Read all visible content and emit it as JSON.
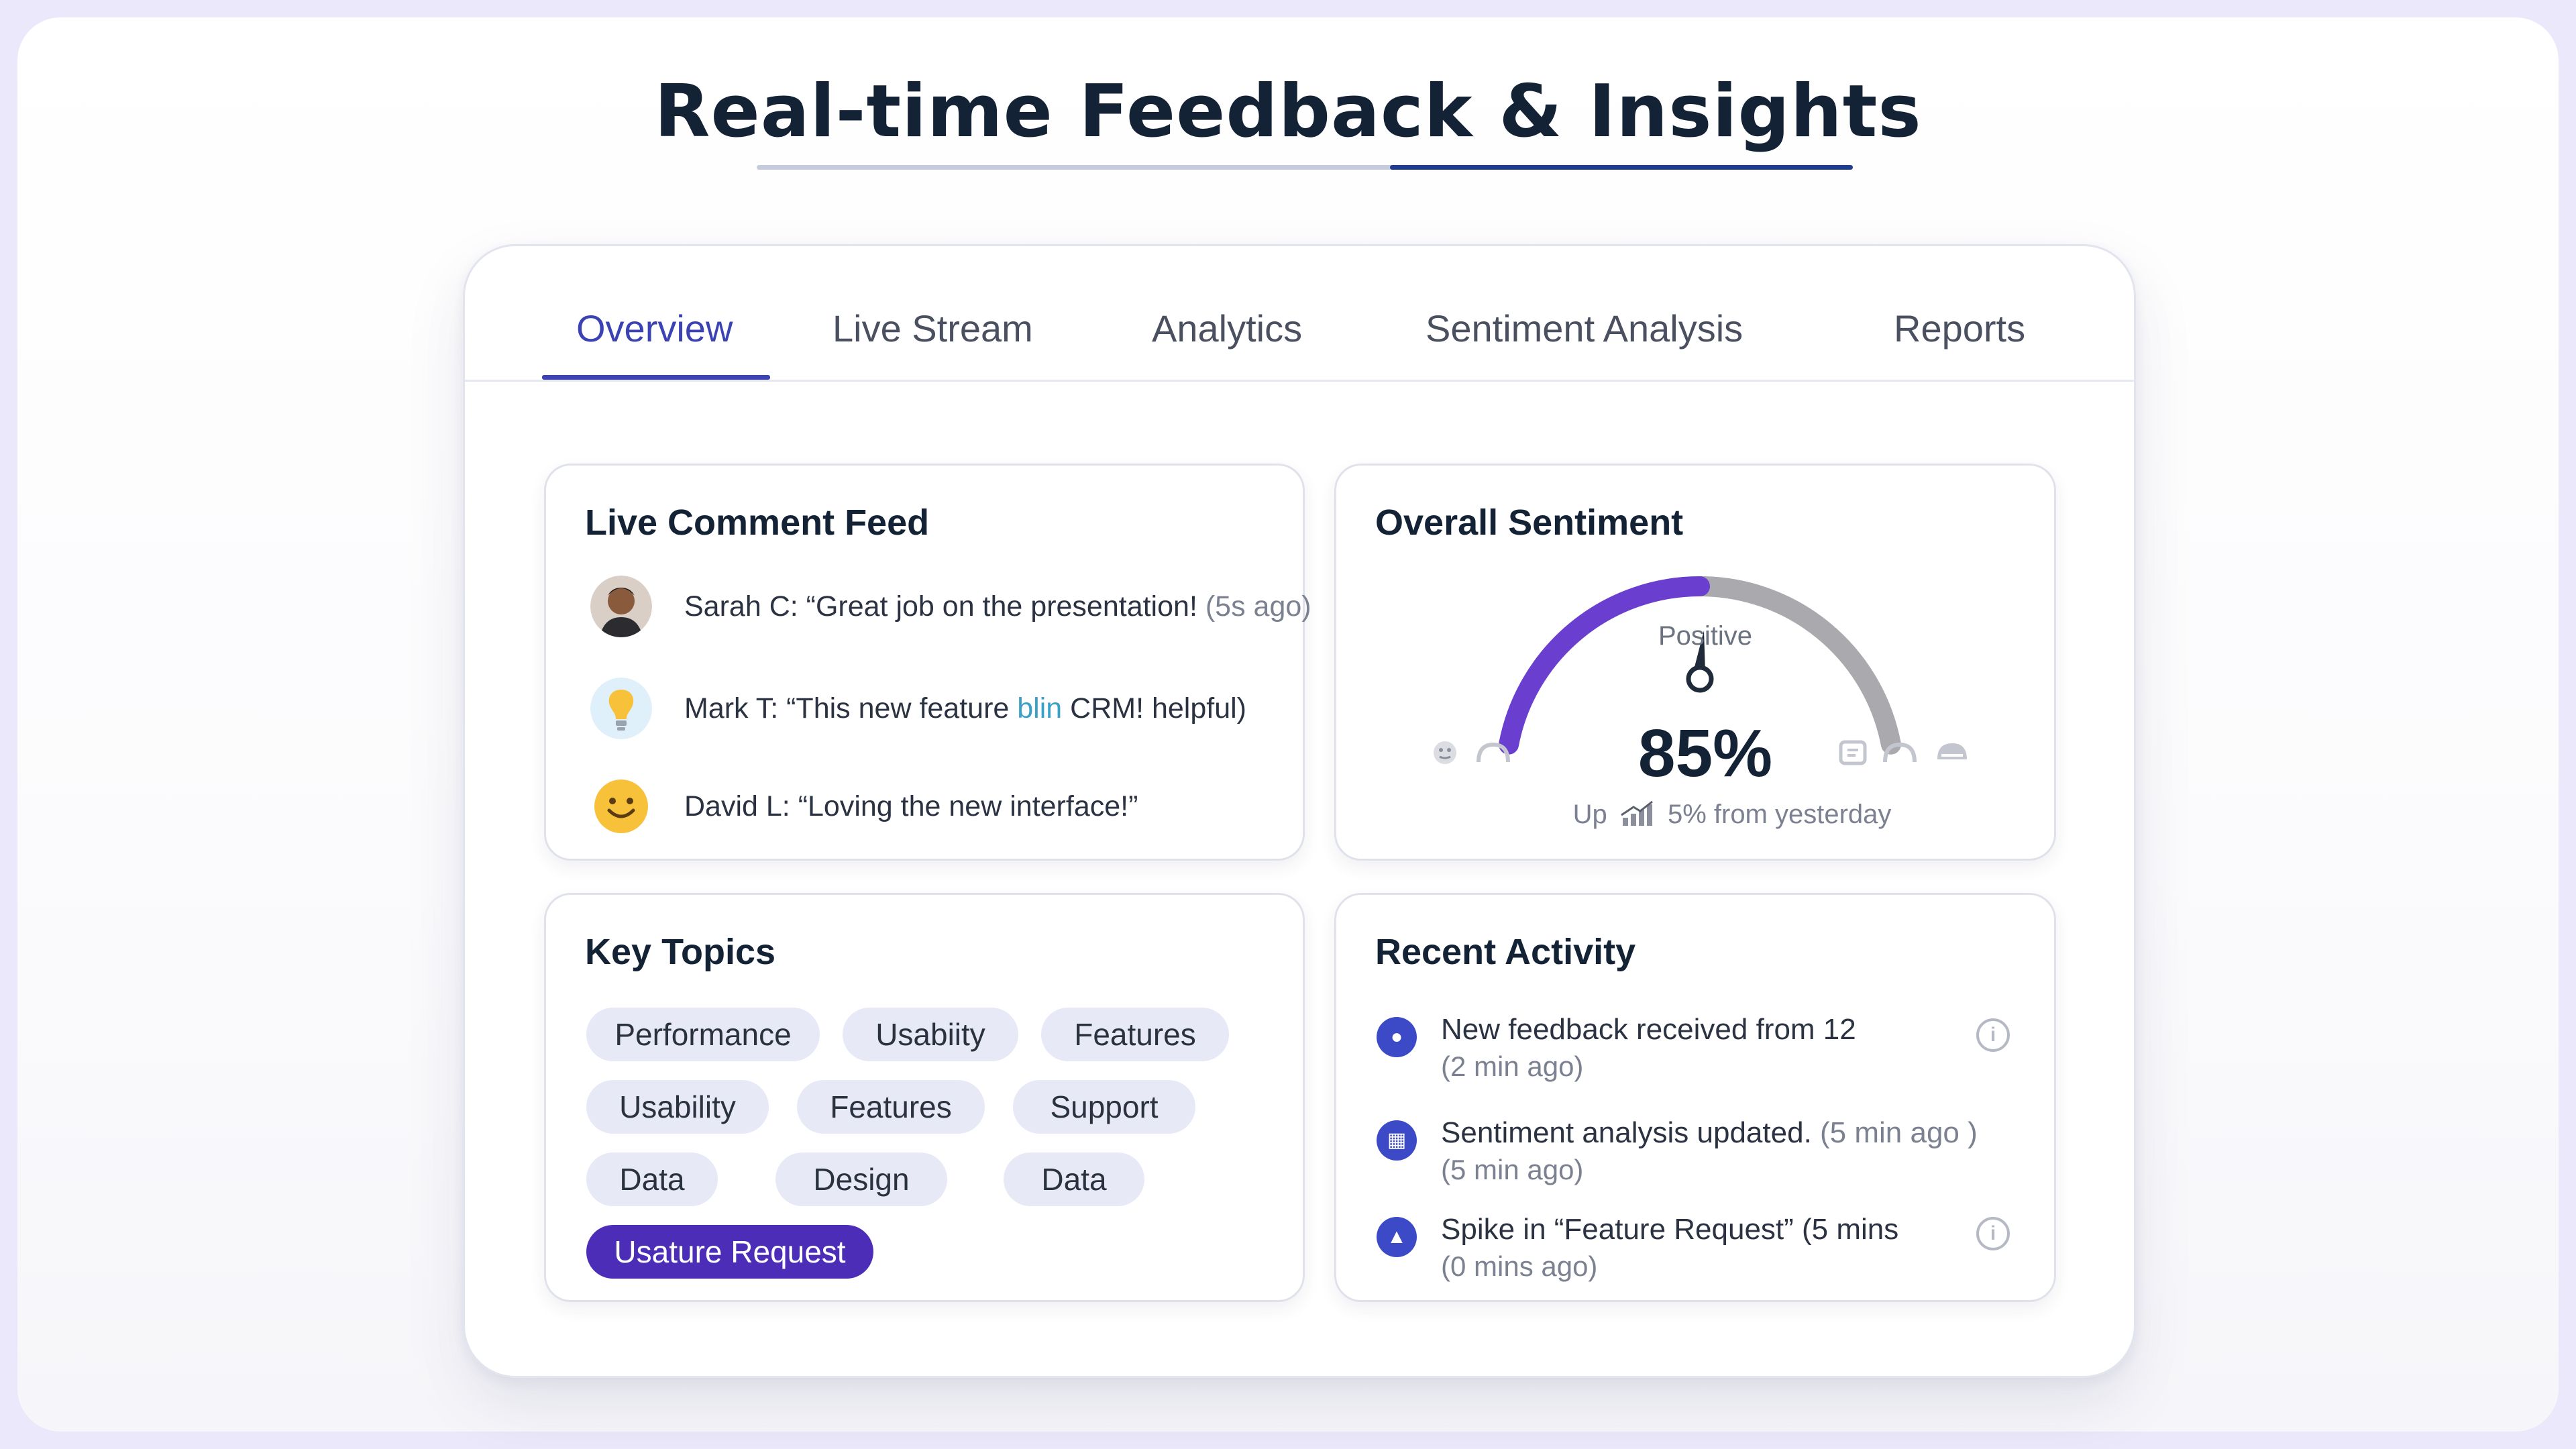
{
  "page": {
    "title": "Real-time Feedback & Insights"
  },
  "tabs": [
    {
      "label": "Overview",
      "active": true
    },
    {
      "label": "Live Stream"
    },
    {
      "label": "Analytics"
    },
    {
      "label": "Sentiment Analysis"
    },
    {
      "label": "Reports"
    }
  ],
  "comment_feed": {
    "title": "Live Comment Feed",
    "items": [
      {
        "text": "Sarah C: “Great job on the presentation!",
        "ago": "(5s ago)",
        "avatar": "person-avatar"
      },
      {
        "text": "Mark T: “This new feature ",
        "highlight": "blin",
        "rest": " CRM! helpful)",
        "avatar": "lightbulb-icon"
      },
      {
        "text": "David L: “Loving the new interface!”",
        "avatar": "smiley-icon"
      }
    ]
  },
  "sentiment": {
    "title": "Overall Sentiment",
    "label": "Positive",
    "value_text": "85%",
    "value": 85,
    "delta_prefix": "Up",
    "delta_text": "5% from yesterday",
    "colors": {
      "positive": "#6a3fd0",
      "rest": "#a9a9ae"
    }
  },
  "topics": {
    "title": "Key Topics",
    "chips": [
      {
        "label": "Performance"
      },
      {
        "label": "Usabiity"
      },
      {
        "label": "Features"
      },
      {
        "label": "Usability"
      },
      {
        "label": "Features"
      },
      {
        "label": "Support"
      },
      {
        "label": "Data"
      },
      {
        "label": "Design"
      },
      {
        "label": "Data"
      },
      {
        "label": "Usature Request",
        "active": true
      }
    ]
  },
  "activity": {
    "title": "Recent Activity",
    "items": [
      {
        "line1": "New feedback received from 12",
        "line2": "(2 min ago)",
        "icon": "feedback-icon"
      },
      {
        "line1": "Sentiment analysis  updated.",
        "line1_sub": " (5 min ago )",
        "line2": "(5 min ago)",
        "icon": "grid-icon"
      },
      {
        "line1": "Spike in “Feature Request” (5 mins",
        "line2": "(0 mins ago)",
        "icon": "alert-icon"
      }
    ]
  }
}
